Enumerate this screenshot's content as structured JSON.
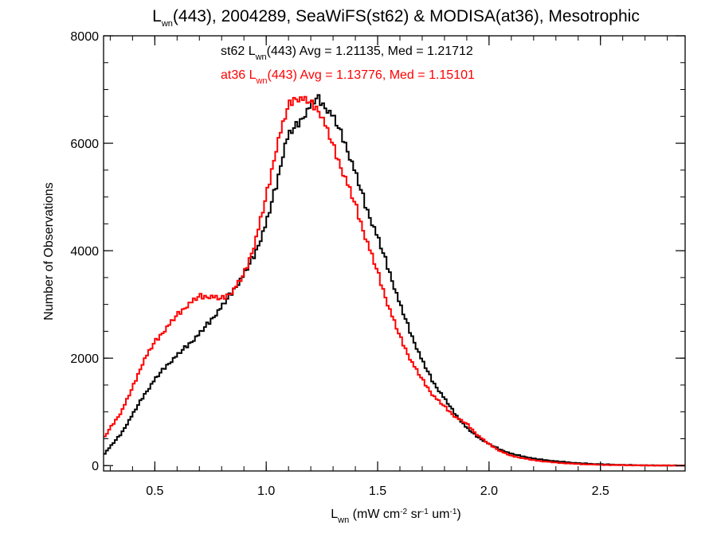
{
  "title": {
    "parts": [
      {
        "t": "L",
        "style": "normal"
      },
      {
        "t": "wn",
        "style": "sub"
      },
      {
        "t": "(443), 2004289, SeaWiFS(st62) & MODISA(at36), Mesotrophic",
        "style": "normal"
      }
    ]
  },
  "xlabel": {
    "parts": [
      {
        "t": "L",
        "style": "normal"
      },
      {
        "t": "wn",
        "style": "sub"
      },
      {
        "t": " (mW cm",
        "style": "normal"
      },
      {
        "t": "-2",
        "style": "sup"
      },
      {
        "t": " sr",
        "style": "normal"
      },
      {
        "t": "-1",
        "style": "sup"
      },
      {
        "t": " um",
        "style": "normal"
      },
      {
        "t": "-1",
        "style": "sup"
      },
      {
        "t": ")",
        "style": "normal"
      }
    ]
  },
  "ylabel": "Number of Observations",
  "legend": [
    {
      "color": "#000000",
      "parts": [
        {
          "t": "st62 L",
          "style": "normal"
        },
        {
          "t": "wn",
          "style": "sub"
        },
        {
          "t": "(443) Avg = 1.21135, Med = 1.21712",
          "style": "normal"
        }
      ]
    },
    {
      "color": "#ff0000",
      "parts": [
        {
          "t": "at36 L",
          "style": "normal"
        },
        {
          "t": "wn",
          "style": "sub"
        },
        {
          "t": "(443) Avg = 1.13776, Med = 1.15101",
          "style": "normal"
        }
      ]
    }
  ],
  "chart_data": {
    "type": "line",
    "step": true,
    "xlim": [
      0.27,
      2.88
    ],
    "ylim": [
      -100,
      8000
    ],
    "xticks": [
      0.5,
      1.0,
      1.5,
      2.0,
      2.5
    ],
    "xtick_labels": [
      "0.5",
      "1.0",
      "1.5",
      "2.0",
      "2.5"
    ],
    "yticks": [
      0,
      2000,
      4000,
      6000,
      8000
    ],
    "ytick_labels": [
      "0",
      "2000",
      "4000",
      "6000",
      "8000"
    ],
    "x_minor_step": 0.1,
    "y_minor_step": 500,
    "grid": false,
    "series": [
      {
        "name": "st62",
        "color": "#000000",
        "points": [
          [
            0.27,
            200
          ],
          [
            0.3,
            350
          ],
          [
            0.35,
            600
          ],
          [
            0.4,
            950
          ],
          [
            0.45,
            1300
          ],
          [
            0.5,
            1600
          ],
          [
            0.55,
            1850
          ],
          [
            0.6,
            2050
          ],
          [
            0.65,
            2250
          ],
          [
            0.7,
            2450
          ],
          [
            0.75,
            2700
          ],
          [
            0.8,
            2950
          ],
          [
            0.85,
            3250
          ],
          [
            0.9,
            3550
          ],
          [
            0.95,
            3950
          ],
          [
            1.0,
            4500
          ],
          [
            1.05,
            5300
          ],
          [
            1.08,
            5900
          ],
          [
            1.1,
            6150
          ],
          [
            1.15,
            6400
          ],
          [
            1.2,
            6700
          ],
          [
            1.23,
            6850
          ],
          [
            1.25,
            6750
          ],
          [
            1.3,
            6500
          ],
          [
            1.35,
            6050
          ],
          [
            1.4,
            5450
          ],
          [
            1.45,
            4800
          ],
          [
            1.5,
            4250
          ],
          [
            1.55,
            3650
          ],
          [
            1.6,
            3000
          ],
          [
            1.65,
            2450
          ],
          [
            1.7,
            1950
          ],
          [
            1.75,
            1550
          ],
          [
            1.8,
            1250
          ],
          [
            1.85,
            950
          ],
          [
            1.9,
            700
          ],
          [
            1.95,
            530
          ],
          [
            2.0,
            400
          ],
          [
            2.05,
            300
          ],
          [
            2.1,
            220
          ],
          [
            2.2,
            130
          ],
          [
            2.3,
            80
          ],
          [
            2.4,
            45
          ],
          [
            2.5,
            25
          ],
          [
            2.6,
            12
          ],
          [
            2.7,
            5
          ],
          [
            2.8,
            2
          ],
          [
            2.88,
            0
          ]
        ]
      },
      {
        "name": "at36",
        "color": "#ff0000",
        "points": [
          [
            0.27,
            500
          ],
          [
            0.3,
            700
          ],
          [
            0.35,
            1000
          ],
          [
            0.4,
            1450
          ],
          [
            0.45,
            1950
          ],
          [
            0.5,
            2300
          ],
          [
            0.55,
            2550
          ],
          [
            0.6,
            2800
          ],
          [
            0.65,
            3000
          ],
          [
            0.7,
            3150
          ],
          [
            0.75,
            3150
          ],
          [
            0.8,
            3100
          ],
          [
            0.85,
            3250
          ],
          [
            0.9,
            3550
          ],
          [
            0.95,
            4150
          ],
          [
            1.0,
            5000
          ],
          [
            1.05,
            6000
          ],
          [
            1.1,
            6700
          ],
          [
            1.13,
            6850
          ],
          [
            1.18,
            6800
          ],
          [
            1.23,
            6650
          ],
          [
            1.25,
            6500
          ],
          [
            1.3,
            5950
          ],
          [
            1.35,
            5400
          ],
          [
            1.4,
            4850
          ],
          [
            1.45,
            4200
          ],
          [
            1.5,
            3600
          ],
          [
            1.55,
            2950
          ],
          [
            1.6,
            2400
          ],
          [
            1.65,
            1950
          ],
          [
            1.7,
            1600
          ],
          [
            1.75,
            1300
          ],
          [
            1.8,
            1100
          ],
          [
            1.85,
            900
          ],
          [
            1.9,
            780
          ],
          [
            1.95,
            560
          ],
          [
            2.0,
            400
          ],
          [
            2.05,
            270
          ],
          [
            2.1,
            180
          ],
          [
            2.2,
            100
          ],
          [
            2.3,
            55
          ],
          [
            2.4,
            30
          ],
          [
            2.5,
            15
          ],
          [
            2.6,
            8
          ],
          [
            2.7,
            3
          ],
          [
            2.8,
            1
          ],
          [
            2.88,
            0
          ]
        ]
      }
    ]
  }
}
